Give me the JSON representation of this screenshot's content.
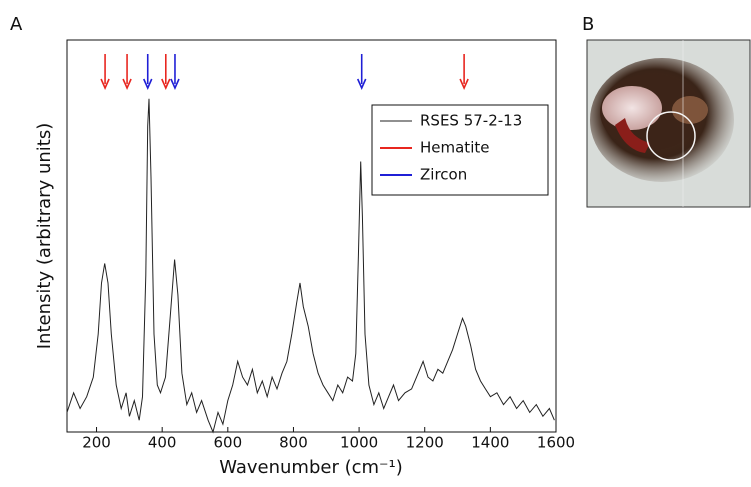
{
  "chart_data": {
    "type": "line",
    "panel_label": "A",
    "xlabel": "Wavenumber (cm⁻¹)",
    "ylabel": "Intensity (arbitrary units)",
    "xlim": [
      110,
      1600
    ],
    "xticks": [
      200,
      400,
      600,
      800,
      1000,
      1200,
      1400,
      1600
    ],
    "ylim": [
      0,
      100
    ],
    "legend": "upper right",
    "series": [
      {
        "name": "RSES 57-2-13",
        "color": "#222222",
        "x": [
          110,
          130,
          150,
          170,
          190,
          205,
          215,
          225,
          235,
          245,
          260,
          275,
          290,
          300,
          315,
          330,
          340,
          350,
          356,
          360,
          366,
          375,
          385,
          395,
          410,
          425,
          438,
          448,
          460,
          475,
          490,
          505,
          520,
          540,
          555,
          570,
          585,
          600,
          615,
          630,
          645,
          660,
          675,
          690,
          705,
          720,
          735,
          750,
          765,
          780,
          795,
          810,
          820,
          830,
          845,
          860,
          875,
          890,
          905,
          920,
          935,
          950,
          965,
          980,
          990,
          998,
          1005,
          1010,
          1018,
          1030,
          1045,
          1060,
          1075,
          1090,
          1105,
          1120,
          1140,
          1160,
          1180,
          1195,
          1210,
          1225,
          1240,
          1255,
          1270,
          1285,
          1300,
          1315,
          1325,
          1340,
          1355,
          1370,
          1385,
          1400,
          1420,
          1440,
          1460,
          1480,
          1500,
          1520,
          1540,
          1560,
          1580,
          1595
        ],
        "values": [
          5,
          10,
          6,
          9,
          14,
          25,
          38,
          43,
          38,
          25,
          12,
          6,
          10,
          4,
          8,
          3,
          9,
          40,
          78,
          85,
          65,
          25,
          12,
          10,
          14,
          30,
          44,
          35,
          15,
          7,
          10,
          5,
          8,
          3,
          0,
          5,
          2,
          8,
          12,
          18,
          14,
          12,
          16,
          10,
          13,
          9,
          14,
          11,
          15,
          18,
          25,
          33,
          38,
          32,
          27,
          20,
          15,
          12,
          10,
          8,
          12,
          10,
          14,
          13,
          20,
          45,
          69,
          55,
          25,
          12,
          7,
          10,
          6,
          9,
          12,
          8,
          10,
          11,
          15,
          18,
          14,
          13,
          16,
          15,
          18,
          21,
          25,
          29,
          27,
          22,
          16,
          13,
          11,
          9,
          10,
          7,
          9,
          6,
          8,
          5,
          7,
          4,
          6,
          3
        ]
      }
    ],
    "markers": [
      {
        "name": "Hematite",
        "color": "#e8261f",
        "x": [
          226,
          293,
          411,
          1320
        ]
      },
      {
        "name": "Zircon",
        "color": "#1f1fd6",
        "x": [
          356,
          439,
          1008
        ]
      }
    ]
  },
  "image_panel": {
    "label": "B"
  }
}
